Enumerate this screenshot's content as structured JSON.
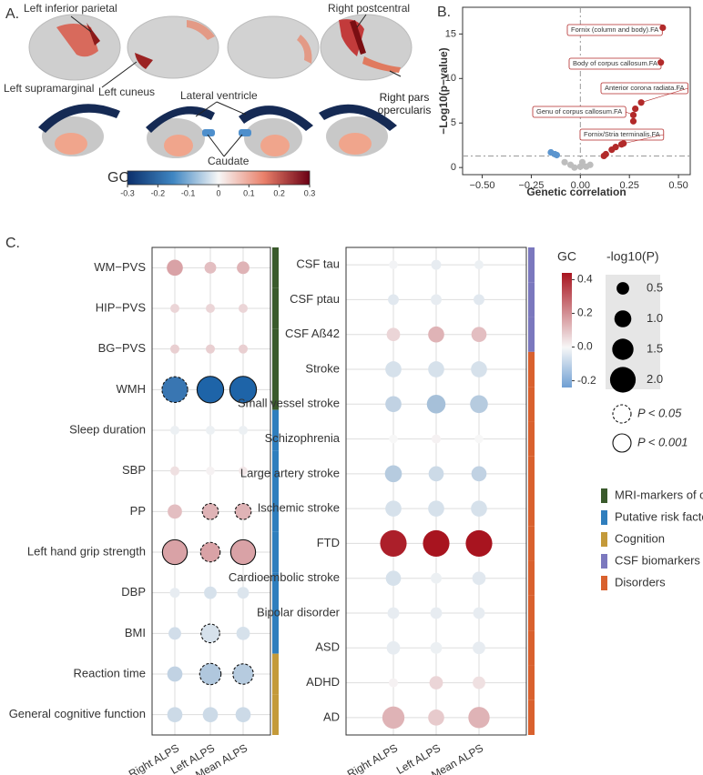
{
  "panel_a": {
    "label": "A.",
    "labels": [
      "Left inferior parietal",
      "Right postcentral",
      "Left supramarginal",
      "Left cuneus",
      "Lateral ventricle",
      "Right pars opercularis",
      "Caudate"
    ],
    "colorbar": {
      "title": "GC",
      "lim": [
        -0.3,
        0.3
      ],
      "ticks": [
        -0.3,
        -0.2,
        -0.1,
        0,
        0.1,
        0.2,
        0.3
      ]
    }
  },
  "panel_b": {
    "label": "B."
  },
  "panel_c": {
    "label": "C.",
    "groups": [
      {
        "name": "MRI-markers of cSVD",
        "color": "#3a5a2c"
      },
      {
        "name": "Putative risk factors",
        "color": "#2f7ebd"
      },
      {
        "name": "Cognition",
        "color": "#c49a3a"
      },
      {
        "name": "CSF biomarkers of AD",
        "color": "#7b78be"
      },
      {
        "name": "Disorders",
        "color": "#d9612e"
      }
    ],
    "color_scale": {
      "title": "GC",
      "lim": [
        -0.24,
        0.44
      ],
      "ticks": [
        0.4,
        0.2,
        {
          "value": 0,
          "label": "0.0"
        },
        -0.2
      ]
    },
    "size_scale": {
      "title": "-log10(P)",
      "ticks": [
        0.5,
        {
          "value": 1,
          "label": "1.0"
        },
        1.5,
        {
          "value": 2,
          "label": "2.0"
        }
      ]
    },
    "significance_legend": [
      {
        "label": "P < 0.05",
        "threshold": 0.05,
        "style": "dashed"
      },
      {
        "label": "P < 0.001",
        "threshold": 0.001,
        "style": "solid"
      }
    ]
  },
  "chart_data": [
    {
      "type": "scatter",
      "x_label": "Genetic correlation",
      "y_label": "−Log10(p−value)",
      "xlim": [
        -0.6,
        0.56
      ],
      "ylim": [
        -0.8,
        18
      ],
      "xticks": [
        {
          "value": -0.5,
          "label": "−0.50"
        },
        {
          "value": -0.25,
          "label": "−0.25"
        },
        {
          "value": 0,
          "label": "0.00"
        },
        {
          "value": 0.25,
          "label": "0.25"
        },
        {
          "value": 0.5,
          "label": "0.50"
        }
      ],
      "yticks": [
        0,
        5,
        10,
        15
      ],
      "threshold_line": 1.3,
      "series": [
        {
          "color": "#b22a2a",
          "x": [
            0.42,
            0.41,
            0.31,
            0.28,
            0.27,
            0.27,
            0.22,
            0.21,
            0.18,
            0.16,
            0.13,
            0.12
          ],
          "y": [
            15.7,
            11.8,
            7.3,
            6.6,
            5.9,
            5.2,
            2.7,
            2.6,
            2.3,
            2.0,
            1.5,
            1.3
          ]
        },
        {
          "color": "#5b95cf",
          "x": [
            -0.15,
            -0.13,
            -0.12
          ],
          "y": [
            1.7,
            1.5,
            1.4
          ]
        },
        {
          "color": "#bdbdbd",
          "x": [
            -0.08,
            -0.05,
            -0.03,
            0.0,
            0.01,
            0.03,
            0.05
          ],
          "y": [
            0.6,
            0.3,
            0.0,
            0.1,
            0.6,
            0.1,
            0.3
          ]
        }
      ],
      "annotations": [
        "Fornix (column and body).FA",
        "Body of corpus callosum.FA",
        "Anterior corona radiata.FA",
        "Genu of corpus callosum.FA",
        "Fornix/Stria terminalis.FA"
      ]
    },
    {
      "type": "dotmatrix",
      "columns": [
        "Right ALPS",
        "Left ALPS",
        "Mean ALPS"
      ],
      "rows": [
        "WM−PVS",
        "HIP−PVS",
        "BG−PVS",
        "WMH",
        "Sleep duration",
        "SBP",
        "PP",
        "Left hand grip strength",
        "DBP",
        "BMI",
        "Reaction time",
        "General cognitive function"
      ],
      "row_group": [
        0,
        0,
        0,
        0,
        1,
        1,
        1,
        1,
        1,
        1,
        2,
        2
      ],
      "gc": [
        [
          0.15,
          0.1,
          0.12
        ],
        [
          0.06,
          0.06,
          0.06
        ],
        [
          0.07,
          0.07,
          0.07
        ],
        [
          -0.35,
          -0.4,
          -0.4
        ],
        [
          -0.02,
          -0.02,
          -0.02
        ],
        [
          0.04,
          0.01,
          0.03
        ],
        [
          0.1,
          0.12,
          0.12
        ],
        [
          0.15,
          0.15,
          0.15
        ],
        [
          -0.03,
          -0.06,
          -0.05
        ],
        [
          -0.07,
          -0.06,
          -0.06
        ],
        [
          -0.1,
          -0.13,
          -0.12
        ],
        [
          -0.08,
          -0.08,
          -0.08
        ]
      ],
      "neglog10p": [
        [
          0.9,
          0.4,
          0.5
        ],
        [
          0.1,
          0.1,
          0.1
        ],
        [
          0.1,
          0.1,
          0.1
        ],
        [
          2.0,
          2.1,
          2.1
        ],
        [
          0.1,
          0.1,
          0.1
        ],
        [
          0.1,
          0.05,
          0.05
        ],
        [
          0.7,
          0.9,
          0.9
        ],
        [
          1.9,
          1.3,
          1.9
        ],
        [
          0.2,
          0.5,
          0.4
        ],
        [
          0.5,
          1.2,
          0.6
        ],
        [
          0.8,
          1.5,
          1.4
        ],
        [
          0.8,
          0.8,
          0.8
        ]
      ],
      "significance": [
        [
          null,
          null,
          null
        ],
        [
          null,
          null,
          null
        ],
        [
          null,
          null,
          null
        ],
        [
          0.05,
          0.001,
          0.001
        ],
        [
          null,
          null,
          null
        ],
        [
          null,
          null,
          null
        ],
        [
          null,
          0.05,
          0.05
        ],
        [
          0.001,
          0.05,
          0.001
        ],
        [
          null,
          null,
          null
        ],
        [
          null,
          0.05,
          null
        ],
        [
          null,
          0.05,
          0.05
        ],
        [
          null,
          null,
          null
        ]
      ]
    },
    {
      "type": "dotmatrix",
      "columns": [
        "Right ALPS",
        "Left ALPS",
        "Mean ALPS"
      ],
      "rows": [
        "CSF tau",
        "CSF ptau",
        "CSF Aß42",
        "Stroke",
        "Small vessel stroke",
        "Schizophrenia",
        "Large artery stroke",
        "Ischemic stroke",
        "FTD",
        "Cardioembolic stroke",
        "Bipolar disorder",
        "ASD",
        "ADHD",
        "AD"
      ],
      "row_group": [
        3,
        3,
        3,
        4,
        4,
        4,
        4,
        4,
        4,
        4,
        4,
        4,
        4,
        4
      ],
      "gc": [
        [
          -0.01,
          -0.03,
          -0.02
        ],
        [
          -0.04,
          -0.03,
          -0.04
        ],
        [
          0.06,
          0.12,
          0.1
        ],
        [
          -0.06,
          -0.06,
          -0.06
        ],
        [
          -0.1,
          -0.15,
          -0.12
        ],
        [
          0.0,
          0.01,
          0.0
        ],
        [
          -0.12,
          -0.08,
          -0.1
        ],
        [
          -0.06,
          -0.06,
          -0.06
        ],
        [
          0.38,
          0.4,
          0.4
        ],
        [
          -0.06,
          -0.02,
          -0.04
        ],
        [
          -0.03,
          -0.03,
          -0.03
        ],
        [
          -0.03,
          -0.02,
          -0.03
        ],
        [
          0.01,
          0.06,
          0.04
        ],
        [
          0.12,
          0.08,
          0.12
        ]
      ],
      "neglog10p": [
        [
          0.05,
          0.2,
          0.1
        ],
        [
          0.3,
          0.3,
          0.3
        ],
        [
          0.6,
          0.9,
          0.8
        ],
        [
          0.9,
          0.9,
          0.9
        ],
        [
          0.9,
          1.2,
          1.1
        ],
        [
          0.05,
          0.1,
          0.05
        ],
        [
          1.0,
          0.8,
          0.8
        ],
        [
          0.9,
          0.9,
          0.9
        ],
        [
          2.1,
          2.1,
          2.1
        ],
        [
          0.8,
          0.3,
          0.6
        ],
        [
          0.4,
          0.4,
          0.4
        ],
        [
          0.6,
          0.4,
          0.5
        ],
        [
          0.1,
          0.6,
          0.5
        ],
        [
          1.6,
          0.9,
          1.5
        ]
      ],
      "significance": [
        [
          null,
          null,
          null
        ],
        [
          null,
          null,
          null
        ],
        [
          null,
          null,
          null
        ],
        [
          null,
          null,
          null
        ],
        [
          null,
          null,
          null
        ],
        [
          null,
          null,
          null
        ],
        [
          null,
          null,
          null
        ],
        [
          null,
          null,
          null
        ],
        [
          null,
          null,
          null
        ],
        [
          null,
          null,
          null
        ],
        [
          null,
          null,
          null
        ],
        [
          null,
          null,
          null
        ],
        [
          null,
          null,
          null
        ],
        [
          null,
          null,
          null
        ]
      ]
    }
  ]
}
